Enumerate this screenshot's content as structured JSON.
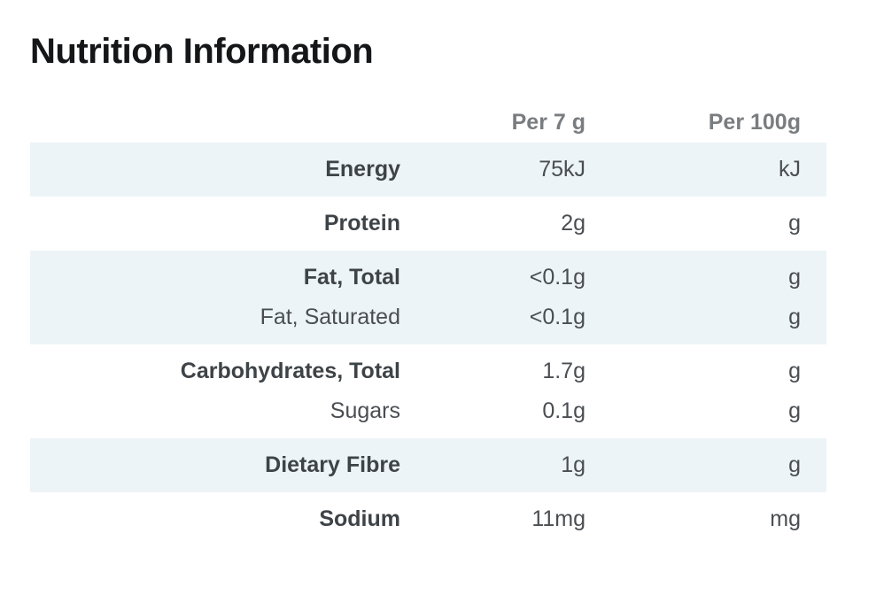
{
  "page": {
    "title": "Nutrition Information"
  },
  "colors": {
    "band_background": "#edf4f7",
    "page_background": "#ffffff",
    "title_text": "#141618",
    "header_text": "#797d80",
    "label_text": "#3e4347",
    "value_text": "#4a4e52"
  },
  "table": {
    "header": {
      "label_column": "",
      "per_serving_column": "Per 7 g",
      "per_100_column": "Per 100g"
    },
    "groups": [
      {
        "shaded": true,
        "rows": [
          {
            "label": "Energy",
            "bold": true,
            "per_serving": "75kJ",
            "per_100": "kJ"
          }
        ]
      },
      {
        "shaded": false,
        "rows": [
          {
            "label": "Protein",
            "bold": true,
            "per_serving": "2g",
            "per_100": "g"
          }
        ]
      },
      {
        "shaded": true,
        "rows": [
          {
            "label": "Fat, Total",
            "bold": true,
            "per_serving": "<0.1g",
            "per_100": "g"
          },
          {
            "label": "Fat, Saturated",
            "bold": false,
            "per_serving": "<0.1g",
            "per_100": "g"
          }
        ]
      },
      {
        "shaded": false,
        "rows": [
          {
            "label": "Carbohydrates, Total",
            "bold": true,
            "per_serving": "1.7g",
            "per_100": "g"
          },
          {
            "label": "Sugars",
            "bold": false,
            "per_serving": "0.1g",
            "per_100": "g"
          }
        ]
      },
      {
        "shaded": true,
        "rows": [
          {
            "label": "Dietary Fibre",
            "bold": true,
            "per_serving": "1g",
            "per_100": "g"
          }
        ]
      },
      {
        "shaded": false,
        "rows": [
          {
            "label": "Sodium",
            "bold": true,
            "per_serving": "11mg",
            "per_100": "mg"
          }
        ]
      }
    ]
  }
}
